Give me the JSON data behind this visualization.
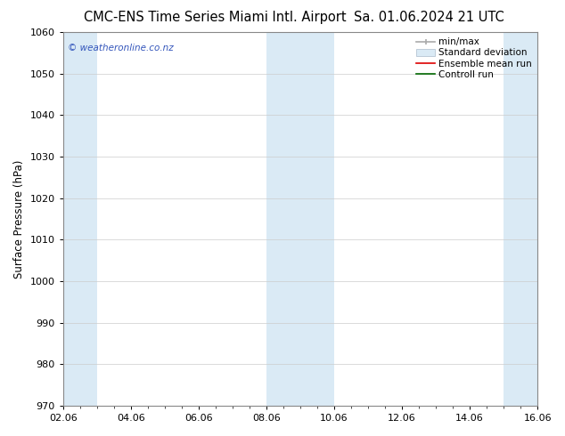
{
  "title_left": "CMC-ENS Time Series Miami Intl. Airport",
  "title_right": "Sa. 01.06.2024 21 UTC",
  "ylabel": "Surface Pressure (hPa)",
  "ylim": [
    970,
    1060
  ],
  "yticks": [
    970,
    980,
    990,
    1000,
    1010,
    1020,
    1030,
    1040,
    1050,
    1060
  ],
  "xlim_start": 0.0,
  "xlim_end": 14.0,
  "xtick_labels": [
    "02.06",
    "04.06",
    "06.06",
    "08.06",
    "10.06",
    "12.06",
    "14.06",
    "16.06"
  ],
  "xtick_positions": [
    0,
    2,
    4,
    6,
    8,
    10,
    12,
    14
  ],
  "shaded_bands": [
    {
      "x_start": 0.0,
      "x_end": 1.0,
      "color": "#daeaf5"
    },
    {
      "x_start": 6.0,
      "x_end": 8.0,
      "color": "#daeaf5"
    },
    {
      "x_start": 13.0,
      "x_end": 14.0,
      "color": "#daeaf5"
    }
  ],
  "watermark_text": "© weatheronline.co.nz",
  "watermark_color": "#3355bb",
  "legend_labels": [
    "min/max",
    "Standard deviation",
    "Ensemble mean run",
    "Controll run"
  ],
  "background_color": "#ffffff",
  "grid_color": "#cccccc",
  "title_fontsize": 10.5,
  "axis_label_fontsize": 8.5,
  "tick_fontsize": 8,
  "legend_fontsize": 7.5
}
